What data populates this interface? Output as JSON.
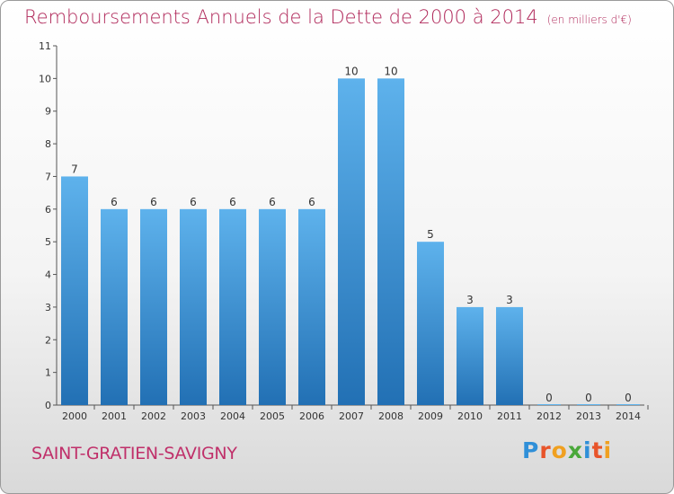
{
  "title": "Remboursements Annuels de la Dette de 2000 à 2014",
  "unit_note": "(en milliers d'€)",
  "town": "SAINT-GRATIEN-SAVIGNY",
  "logo": {
    "text": "Proxiti",
    "letters": [
      {
        "c": "P",
        "color": "#2f8fd8"
      },
      {
        "c": "r",
        "color": "#e8542a"
      },
      {
        "c": "o",
        "color": "#f0a020"
      },
      {
        "c": "x",
        "color": "#4aa83a"
      },
      {
        "c": "i",
        "color": "#2f8fd8"
      },
      {
        "c": "t",
        "color": "#e8542a"
      },
      {
        "c": "i",
        "color": "#f0a020"
      }
    ]
  },
  "colors": {
    "bar_top": "#5eb2ec",
    "bar_bottom": "#2270b4",
    "title": "#b0285a",
    "town": "#c0306a"
  },
  "chart_data": {
    "type": "bar",
    "title": "Remboursements Annuels de la Dette de 2000 à 2014",
    "categories": [
      "2000",
      "2001",
      "2002",
      "2003",
      "2004",
      "2005",
      "2006",
      "2007",
      "2008",
      "2009",
      "2010",
      "2011",
      "2012",
      "2013",
      "2014"
    ],
    "values": [
      7,
      6,
      6,
      6,
      6,
      6,
      6,
      10,
      10,
      5,
      3,
      3,
      0,
      0,
      0
    ],
    "ylim": [
      0,
      11
    ],
    "yticks": [
      0,
      1,
      2,
      3,
      4,
      5,
      6,
      7,
      8,
      9,
      10,
      11
    ],
    "grid": false,
    "data_labels": true
  }
}
